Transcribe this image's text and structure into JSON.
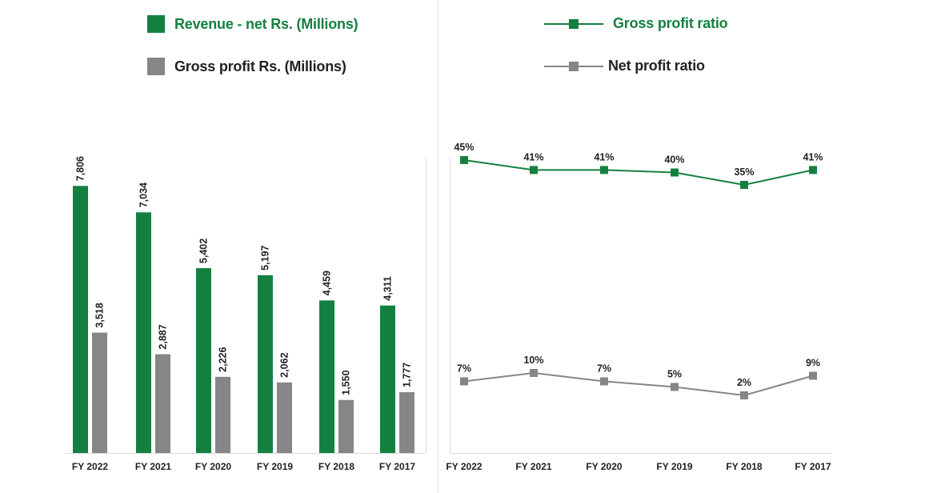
{
  "colors": {
    "green": "#148040",
    "gray": "#868686",
    "axis": "#d8d8d8"
  },
  "chart_data": [
    {
      "type": "bar",
      "categories": [
        "FY 2022",
        "FY 2021",
        "FY 2020",
        "FY 2019",
        "FY 2018",
        "FY 2017"
      ],
      "series": [
        {
          "name": "Revenue - net Rs. (Millions)",
          "values": [
            7806,
            7034,
            5402,
            5197,
            4459,
            4311
          ],
          "labels": [
            "7,806",
            "7,034",
            "5,402",
            "5,197",
            "4,459",
            "4,311"
          ]
        },
        {
          "name": "Gross profit Rs. (Millions)",
          "values": [
            3518,
            2887,
            2226,
            2062,
            1550,
            1777
          ],
          "labels": [
            "3,518",
            "2,887",
            "2,226",
            "2,062",
            "1,550",
            "1,777"
          ]
        }
      ],
      "ylim": [
        0,
        8000
      ],
      "grid": false,
      "legend_position": "top"
    },
    {
      "type": "line",
      "categories": [
        "FY 2022",
        "FY 2021",
        "FY 2020",
        "FY 2019",
        "FY 2018",
        "FY 2017"
      ],
      "series": [
        {
          "name": "Gross profit ratio",
          "values": [
            45,
            41,
            41,
            40,
            35,
            41
          ],
          "labels": [
            "45%",
            "41%",
            "41%",
            "40%",
            "35%",
            "41%"
          ]
        },
        {
          "name": "Net profit ratio",
          "values": [
            7,
            10,
            7,
            5,
            2,
            9
          ],
          "labels": [
            "7%",
            "10%",
            "7%",
            "5%",
            "2%",
            "9%"
          ]
        }
      ],
      "grid": false,
      "legend_position": "top"
    }
  ]
}
